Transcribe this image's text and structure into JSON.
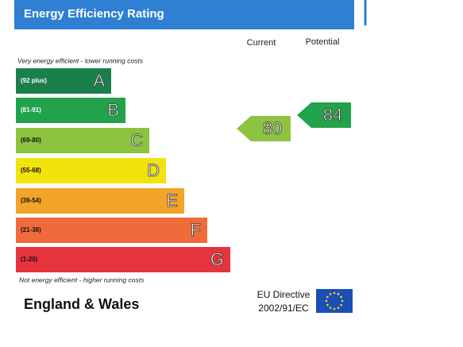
{
  "title": "Energy Efficiency Rating",
  "columns": {
    "current": "Current",
    "potential": "Potential"
  },
  "top_note": "Very energy efficient - lower running costs",
  "bottom_note": "Not energy efficient - higher running costs",
  "bands": [
    {
      "range": "(92 plus)",
      "letter": "A",
      "color": "#1b7f4c"
    },
    {
      "range": "(81-91)",
      "letter": "B",
      "color": "#22a24b"
    },
    {
      "range": "(69-80)",
      "letter": "C",
      "color": "#8cc43f"
    },
    {
      "range": "(55-68)",
      "letter": "D",
      "color": "#f3e30d"
    },
    {
      "range": "(39-54)",
      "letter": "E",
      "color": "#f3a328"
    },
    {
      "range": "(21-38)",
      "letter": "F",
      "color": "#ef6b3b"
    },
    {
      "range": "(1-20)",
      "letter": "G",
      "color": "#e6343f"
    }
  ],
  "current": {
    "value": "80",
    "color": "#8cc43f"
  },
  "potential": {
    "value": "84",
    "color": "#22a24b"
  },
  "footer": {
    "region": "England & Wales",
    "directive": "EU Directive",
    "directive_code": "2002/91/EC"
  }
}
